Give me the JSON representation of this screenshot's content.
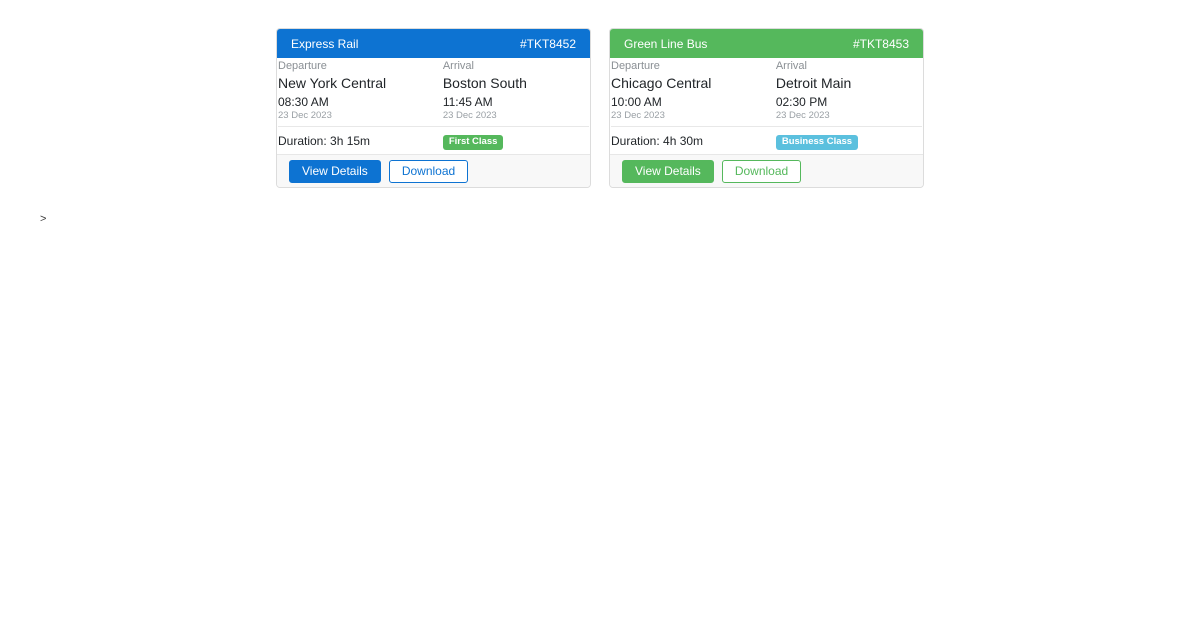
{
  "page": {
    "stray_text": ">"
  },
  "tickets": [
    {
      "operator": "Express Rail",
      "ticket_number": "#TKT8452",
      "accent_color": "#0d73d2",
      "departure": {
        "label": "Departure",
        "station": "New York Central",
        "time": "08:30 AM",
        "date": "23 Dec 2023"
      },
      "arrival": {
        "label": "Arrival",
        "station": "Boston South",
        "time": "11:45 AM",
        "date": "23 Dec 2023"
      },
      "duration_label": "Duration: 3h 15m",
      "class_badge": {
        "label": "First Class",
        "color": "#55b85c"
      },
      "buttons": {
        "view_details": "View Details",
        "download": "Download"
      }
    },
    {
      "operator": "Green Line Bus",
      "ticket_number": "#TKT8453",
      "accent_color": "#55b85c",
      "departure": {
        "label": "Departure",
        "station": "Chicago Central",
        "time": "10:00 AM",
        "date": "23 Dec 2023"
      },
      "arrival": {
        "label": "Arrival",
        "station": "Detroit Main",
        "time": "02:30 PM",
        "date": "23 Dec 2023"
      },
      "duration_label": "Duration: 4h 30m",
      "class_badge": {
        "label": "Business Class",
        "color": "#5bc0de"
      },
      "buttons": {
        "view_details": "View Details",
        "download": "Download"
      }
    }
  ]
}
